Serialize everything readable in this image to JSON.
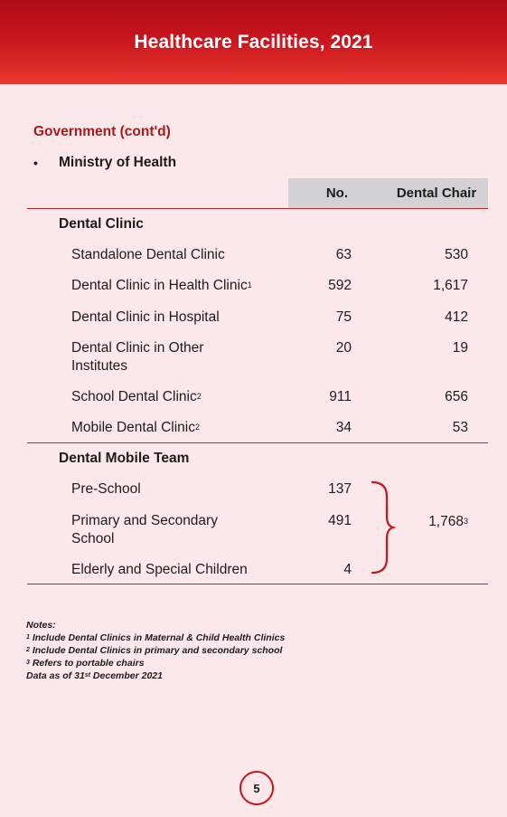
{
  "header": {
    "title": "Healthcare Facilities, 2021"
  },
  "section": {
    "title": "Government (cont'd)",
    "bullet": "Ministry of Health"
  },
  "table": {
    "columns": {
      "no": "No.",
      "chair": "Dental Chair"
    },
    "groups": [
      {
        "label": "Dental Clinic",
        "rows": [
          {
            "label": "Standalone Dental Clinic",
            "sup": "",
            "no": "63",
            "chair": "530"
          },
          {
            "label": "Dental Clinic in Health Clinic",
            "sup": "1",
            "no": "592",
            "chair": "1,617"
          },
          {
            "label": "Dental Clinic in Hospital",
            "sup": "",
            "no": "75",
            "chair": "412"
          },
          {
            "label": "Dental Clinic in Other Institutes",
            "sup": "",
            "no": "20",
            "chair": "19"
          },
          {
            "label": "School Dental Clinic",
            "sup": "2",
            "no": "911",
            "chair": "656"
          },
          {
            "label": "Mobile Dental Clinic",
            "sup": "2",
            "no": "34",
            "chair": "53"
          }
        ]
      },
      {
        "label": "Dental Mobile Team",
        "rows": [
          {
            "label": "Pre-School",
            "no": "137"
          },
          {
            "label": "Primary and Secondary School",
            "no": "491"
          },
          {
            "label": "Elderly and Special Children",
            "no": "4"
          }
        ],
        "combined_chair": "1,768",
        "combined_chair_sup": "3"
      }
    ]
  },
  "notes": {
    "heading": "Notes:",
    "items": [
      {
        "sup": "1",
        "text": "Include Dental Clinics in Maternal & Child Health Clinics"
      },
      {
        "sup": "2",
        "text": "Include Dental Clinics in primary and secondary school"
      },
      {
        "sup": "3",
        "text": "Refers to portable chairs"
      }
    ],
    "data_as_of_prefix": "Data as of 31",
    "data_as_of_sup": "st",
    "data_as_of_suffix": " December 2021"
  },
  "footer": {
    "page_number": "5"
  },
  "colors": {
    "banner": "#c8141d",
    "accent": "#a81a1a",
    "page_bg": "#fce8ea",
    "header_cell": "#d2d2d4"
  }
}
